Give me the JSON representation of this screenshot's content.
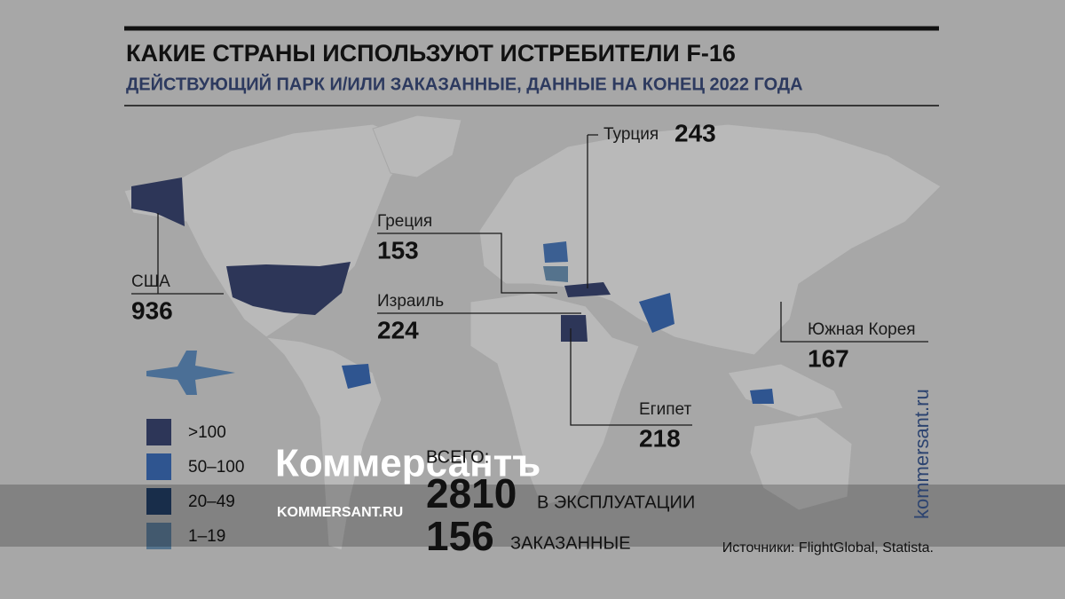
{
  "header": {
    "title": "КАКИЕ СТРАНЫ ИСПОЛЬЗУЮТ ИСТРЕБИТЕЛИ F-16",
    "subtitle": "ДЕЙСТВУЮЩИЙ ПАРК И/ИЛИ ЗАКАЗАННЫЕ, ДАННЫЕ НА КОНЕЦ 2022 ГОДА"
  },
  "callouts": [
    {
      "country": "США",
      "value": 936
    },
    {
      "country": "Греция",
      "value": 153
    },
    {
      "country": "Израиль",
      "value": 224
    },
    {
      "country": "Турция",
      "value": 243
    },
    {
      "country": "Египет",
      "value": 218
    },
    {
      "country": "Южная Корея",
      "value": 167
    }
  ],
  "legend": [
    {
      "label": ">100",
      "color": "#2d3658"
    },
    {
      "label": "50–100",
      "color": "#2f5590"
    },
    {
      "label": "20–49",
      "color": "#1f3a5f"
    },
    {
      "label": "1–19",
      "color": "#55738d"
    }
  ],
  "totals": {
    "label": "ВСЕГО:",
    "items": [
      {
        "value": 2810,
        "label": "В ЭКСПЛУАТАЦИИ"
      },
      {
        "value": 156,
        "label": "ЗАКАЗАННЫЕ"
      }
    ]
  },
  "source": "Источники: FlightGlobal, Statista.",
  "watermark": {
    "logo": "Коммерсантъ",
    "url": "KOMMERSANT.RU"
  },
  "side_url": "kommersant.ru"
}
